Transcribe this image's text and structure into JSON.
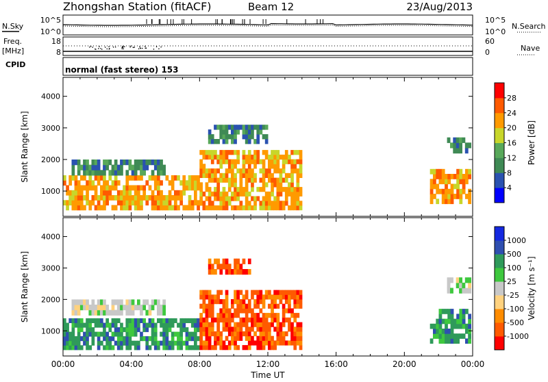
{
  "header": {
    "title": "Zhongshan Station (fitACF)",
    "beam": "Beam 12",
    "date": "23/Aug/2013"
  },
  "sky_panel": {
    "left_label": "N.Sky",
    "left_top": "10^5",
    "left_bottom": "10^0",
    "right_top": "10^5",
    "right_bottom": "10^0",
    "right_label": "N.Search"
  },
  "freq_panel": {
    "left_label_1": "Freq.",
    "left_label_2": "[MHz]",
    "left_top": "18",
    "left_bottom": "8",
    "right_top": "60",
    "right_bottom": "0",
    "right_label": "Nave"
  },
  "cpid_panel": {
    "label": "CPID",
    "text": "normal (fast stereo) 153"
  },
  "colors": {
    "power_scale": [
      "#0000ff",
      "#2a52b0",
      "#3f8a55",
      "#58a85a",
      "#c8d62a",
      "#ff9a00",
      "#ff5a00",
      "#ff0000"
    ],
    "velocity_scale": [
      "#ff0000",
      "#ff5a00",
      "#ff8c00",
      "#ffd27f",
      "#c8c8c8",
      "#3ec83e",
      "#2f9a5a",
      "#2f4fb0",
      "#1428e0"
    ]
  },
  "chart_data": [
    {
      "type": "heatmap",
      "panel": "power",
      "ylabel": "Slant Range [km]",
      "yticks": [
        "1000",
        "2000",
        "3000",
        "4000"
      ],
      "ylim": [
        200,
        4600
      ],
      "xlim": [
        "00:00",
        "24:00"
      ],
      "colorbar_label": "Power [dB]",
      "colorbar_ticks": [
        "4",
        "8",
        "12",
        "16",
        "20",
        "24",
        "28"
      ],
      "colorbar_range": [
        0,
        32
      ],
      "regions": [
        {
          "t": [
            0.0,
            8.0
          ],
          "range": [
            400,
            1500
          ],
          "value": 22
        },
        {
          "t": [
            8.0,
            14.0
          ],
          "range": [
            400,
            2300
          ],
          "value": 20
        },
        {
          "t": [
            0.5,
            6.0
          ],
          "range": [
            1500,
            2000
          ],
          "value": 10
        },
        {
          "t": [
            8.5,
            12.0
          ],
          "range": [
            2500,
            3100
          ],
          "value": 8
        },
        {
          "t": [
            21.5,
            23.9
          ],
          "range": [
            600,
            1700
          ],
          "value": 22
        },
        {
          "t": [
            22.5,
            23.9
          ],
          "range": [
            2200,
            2700
          ],
          "value": 8
        }
      ]
    },
    {
      "type": "heatmap",
      "panel": "velocity",
      "ylabel": "Slant Range [km]",
      "yticks": [
        "1000",
        "2000",
        "3000",
        "4000"
      ],
      "ylim": [
        200,
        4600
      ],
      "xlim": [
        "00:00",
        "24:00"
      ],
      "xticks": [
        "00:00",
        "04:00",
        "08:00",
        "12:00",
        "16:00",
        "20:00",
        "00:00"
      ],
      "xlabel": "Time UT",
      "colorbar_label": "Velocity [m s⁻¹]",
      "colorbar_ticks": [
        "1000",
        "500",
        "100",
        "25",
        "-25",
        "-100",
        "-500",
        "-1000"
      ],
      "regions": [
        {
          "t": [
            0.0,
            8.0
          ],
          "range": [
            400,
            1400
          ],
          "value": 200
        },
        {
          "t": [
            8.0,
            14.0
          ],
          "range": [
            400,
            2300
          ],
          "value": -300
        },
        {
          "t": [
            0.5,
            6.0
          ],
          "range": [
            1500,
            2000
          ],
          "value": 0
        },
        {
          "t": [
            8.5,
            11.0
          ],
          "range": [
            2800,
            3300
          ],
          "value": -300
        },
        {
          "t": [
            21.5,
            23.9
          ],
          "range": [
            600,
            1700
          ],
          "value": 200
        },
        {
          "t": [
            22.5,
            23.9
          ],
          "range": [
            2200,
            2700
          ],
          "value": 0
        }
      ]
    }
  ]
}
